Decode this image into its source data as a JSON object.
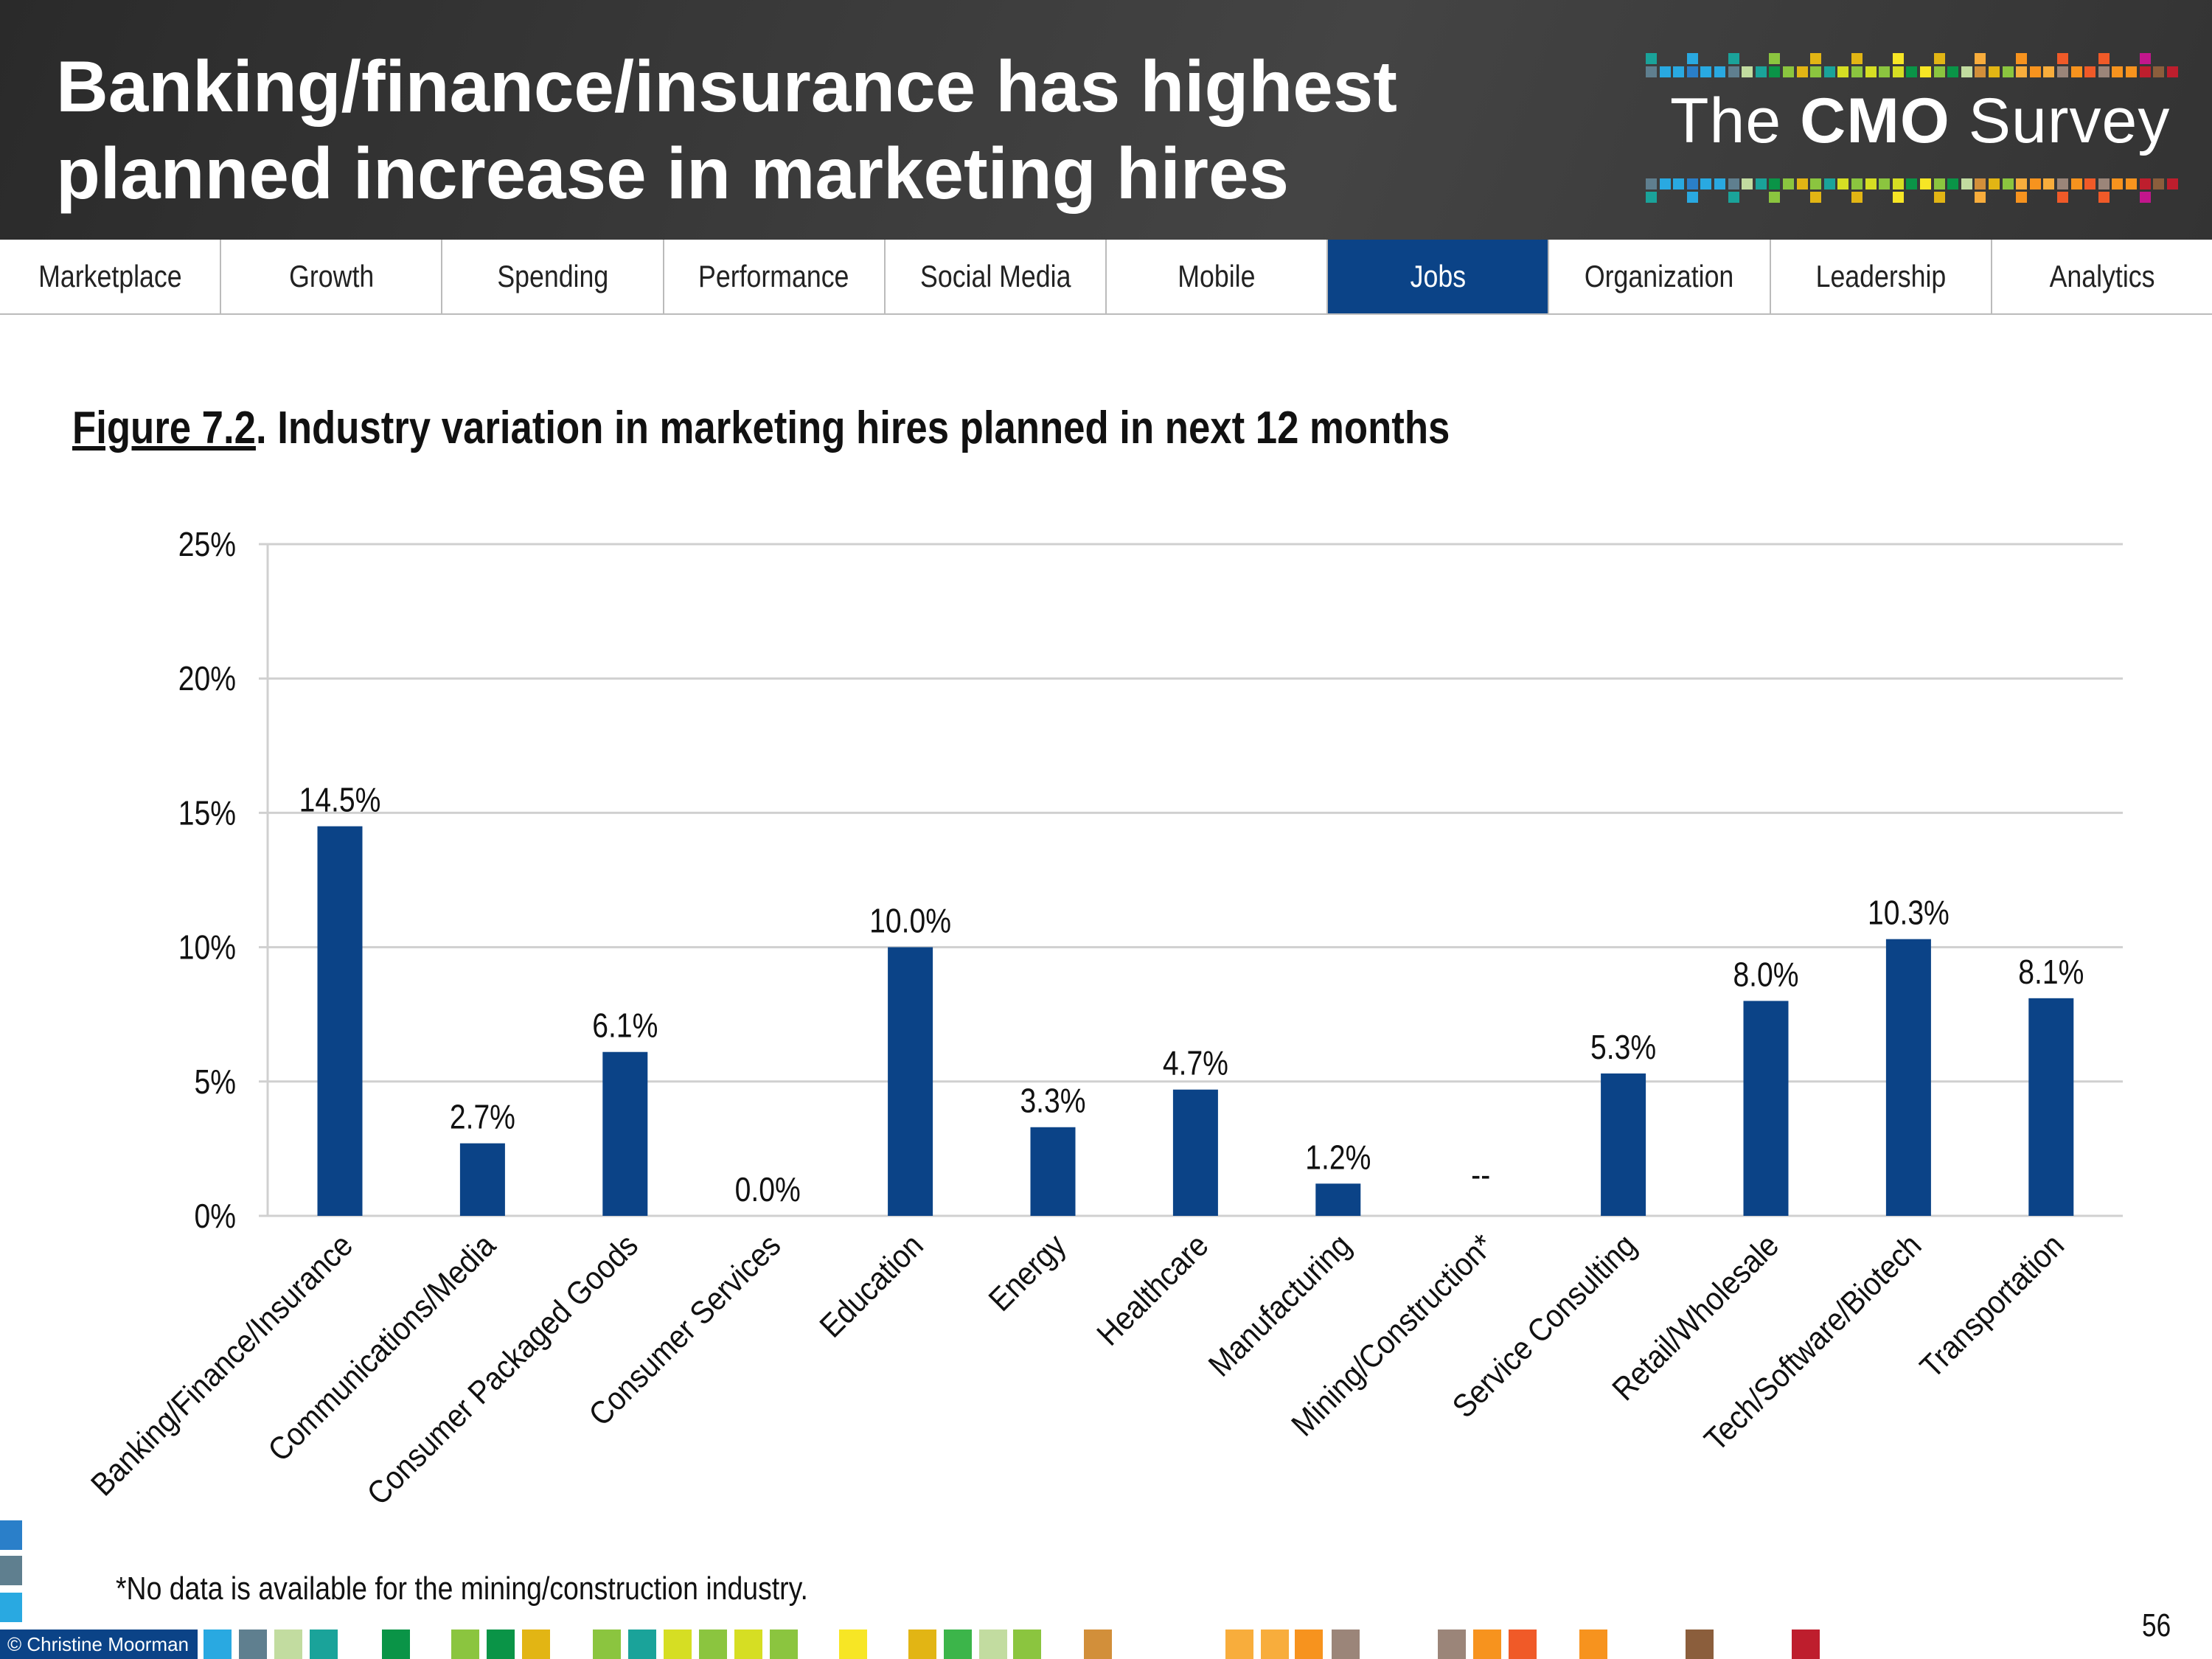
{
  "header": {
    "title_line1": "Banking/finance/insurance has highest",
    "title_line2": "planned increase in marketing hires",
    "logo": {
      "prefix": "The",
      "bold": "CMO",
      "suffix": "Survey"
    }
  },
  "nav": {
    "tabs": [
      {
        "label": "Marketplace"
      },
      {
        "label": "Growth"
      },
      {
        "label": "Spending"
      },
      {
        "label": "Performance"
      },
      {
        "label": "Social Media"
      },
      {
        "label": "Mobile"
      },
      {
        "label": "Jobs",
        "active": true
      },
      {
        "label": "Organization"
      },
      {
        "label": "Leadership"
      },
      {
        "label": "Analytics"
      }
    ],
    "active_color": "#0b4387"
  },
  "figure": {
    "number": "Figure 7.2",
    "title": ".  Industry variation in marketing hires planned in next 12 months"
  },
  "chart_data": {
    "type": "bar",
    "categories": [
      "Banking/Finance/Insurance",
      "Communications/Media",
      "Consumer Packaged Goods",
      "Consumer Services",
      "Education",
      "Energy",
      "Healthcare",
      "Manufacturing",
      "Mining/Construction*",
      "Service Consulting",
      "Retail/Wholesale",
      "Tech/Software/Biotech",
      "Transportation"
    ],
    "values": [
      14.5,
      2.7,
      6.1,
      0.0,
      10.0,
      3.3,
      4.7,
      1.2,
      null,
      5.3,
      8.0,
      10.3,
      8.1
    ],
    "data_labels": [
      "14.5%",
      "2.7%",
      "6.1%",
      "0.0%",
      "10.0%",
      "3.3%",
      "4.7%",
      "1.2%",
      "--",
      "5.3%",
      "8.0%",
      "10.3%",
      "8.1%"
    ],
    "ylim": [
      0,
      25
    ],
    "yticks": [
      "0%",
      "5%",
      "10%",
      "15%",
      "20%",
      "25%"
    ],
    "grid": true,
    "bar_color": "#0b4387"
  },
  "footnote": "*No data is available for the mining/construction industry.",
  "copyright": "© Christine Moorman",
  "page_number": "56"
}
